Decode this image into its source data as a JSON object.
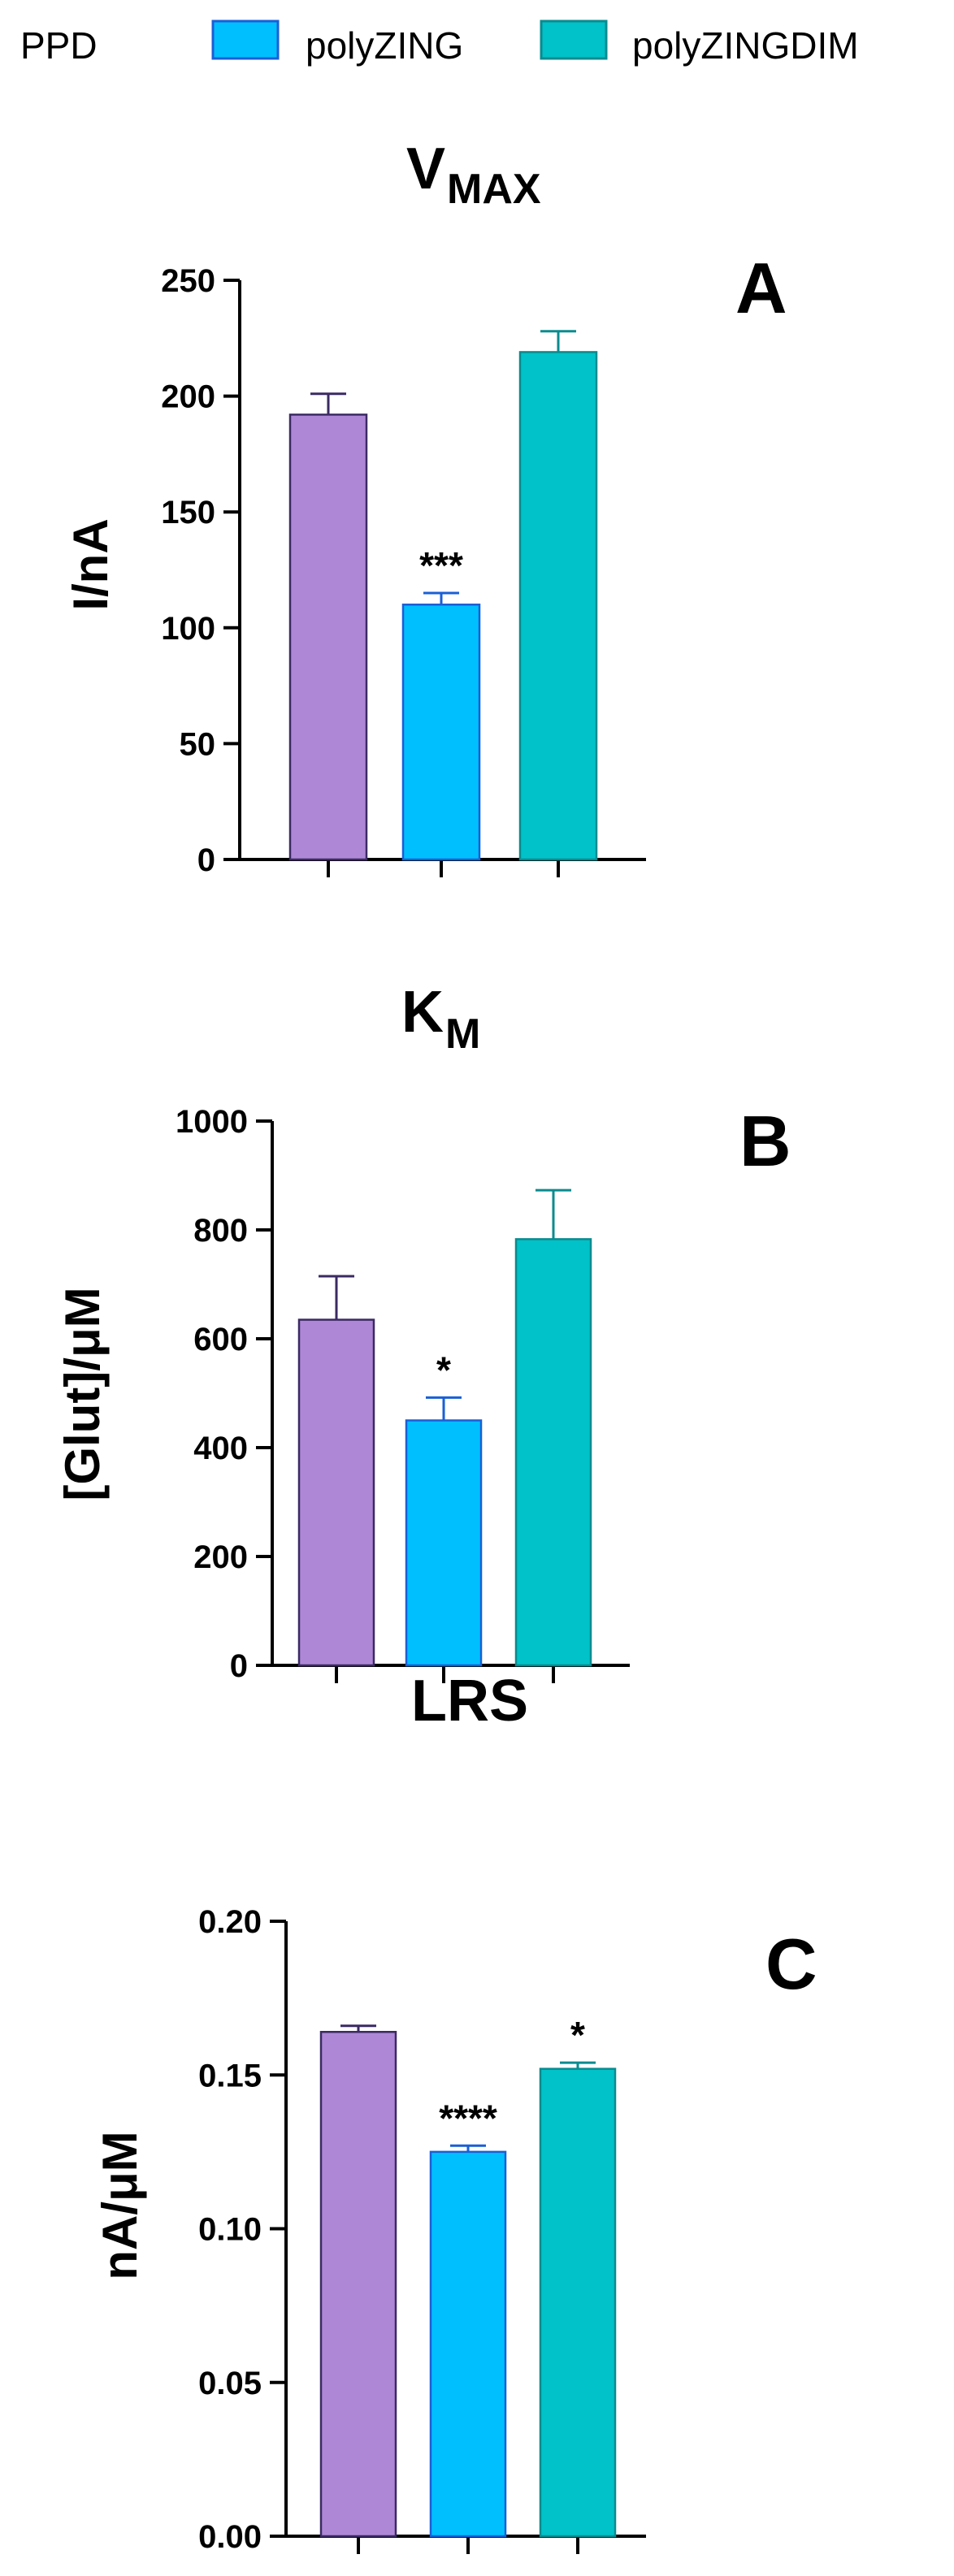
{
  "chart_data": [
    {
      "type": "bar",
      "title": "V",
      "title_sub": "MAX",
      "panel_letter": "A",
      "ylabel": "I/nA",
      "xlabel": "",
      "ylim": [
        0,
        250
      ],
      "yticks": [
        0,
        50,
        100,
        150,
        200,
        250
      ],
      "ytick_labels": [
        "0",
        "50",
        "100",
        "150",
        "200",
        "250"
      ],
      "categories": [
        "PPD",
        "polyZING",
        "polyZINGDIM"
      ],
      "values": [
        192,
        110,
        219
      ],
      "errors": [
        9,
        5,
        9
      ],
      "significance": [
        "",
        "***",
        ""
      ]
    },
    {
      "type": "bar",
      "title": "K",
      "title_sub": "M",
      "panel_letter": "B",
      "ylabel": "[Glut]/μM",
      "xlabel": "",
      "ylim": [
        0,
        1000
      ],
      "yticks": [
        0,
        200,
        400,
        600,
        800,
        1000
      ],
      "ytick_labels": [
        "0",
        "200",
        "400",
        "600",
        "800",
        "1000"
      ],
      "categories": [
        "PPD",
        "polyZING",
        "polyZINGDIM"
      ],
      "values": [
        635,
        450,
        783
      ],
      "errors": [
        80,
        42,
        90
      ],
      "significance": [
        "",
        "*",
        ""
      ]
    },
    {
      "type": "bar",
      "title": "LRS",
      "title_sub": "",
      "panel_letter": "C",
      "ylabel": "nA/μM",
      "xlabel": "",
      "ylim": [
        0,
        0.2
      ],
      "yticks": [
        0,
        0.05,
        0.1,
        0.15,
        0.2
      ],
      "ytick_labels": [
        "0.00",
        "0.05",
        "0.10",
        "0.15",
        "0.20"
      ],
      "categories": [
        "PPD",
        "polyZING",
        "polyZINGDIM"
      ],
      "values": [
        0.164,
        0.125,
        0.152
      ],
      "errors": [
        0.002,
        0.002,
        0.002
      ],
      "significance": [
        "",
        "****",
        "*"
      ]
    }
  ],
  "legend": {
    "position": "top",
    "items": [
      {
        "label": "PPD",
        "color": "#ae88d6",
        "edge": "#3b2a63"
      },
      {
        "label": "polyZING",
        "color": "#00bfff",
        "edge": "#1a5fd6"
      },
      {
        "label": "polyZINGDIM",
        "color": "#00c2c8",
        "edge": "#0a8b8f"
      }
    ]
  }
}
